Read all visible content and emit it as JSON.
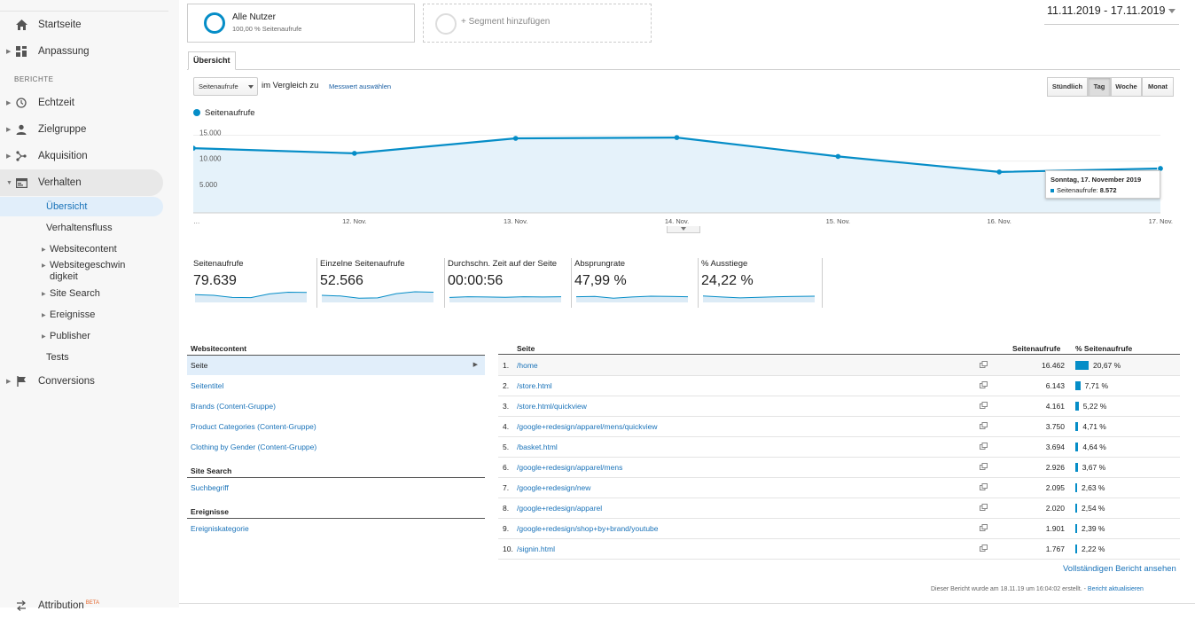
{
  "sidebar": {
    "home": "Startseite",
    "customization": "Anpassung",
    "section": "BERICHTE",
    "realtime": "Echtzeit",
    "audience": "Zielgruppe",
    "acquisition": "Akquisition",
    "behavior": "Verhalten",
    "behavior_sub": {
      "overview": "Übersicht",
      "flow": "Verhaltensfluss",
      "site_content": "Websitecontent",
      "site_speed_1": "Websitegeschwin",
      "site_speed_2": "digkeit",
      "site_search": "Site Search",
      "events": "Ereignisse",
      "publisher": "Publisher",
      "tests": "Tests"
    },
    "conversions": "Conversions",
    "attribution": "Attribution",
    "beta": "BETA"
  },
  "segment": {
    "name": "Alle Nutzer",
    "sub": "100,00 % Seitenaufrufe",
    "add": "+ Segment hinzufügen"
  },
  "date_range": "11.11.2019 - 17.11.2019",
  "tab": "Übersicht",
  "controls": {
    "metric": "Seitenaufrufe",
    "compare": "im Vergleich zu",
    "choose_metric": "Messwert auswählen",
    "granularity": [
      "Stündlich",
      "Tag",
      "Woche",
      "Monat"
    ]
  },
  "chart_data": {
    "type": "area",
    "x": [
      "…",
      "12. Nov.",
      "13. Nov.",
      "14. Nov.",
      "15. Nov.",
      "16. Nov.",
      "17. Nov."
    ],
    "series": [
      {
        "name": "Seitenaufrufe",
        "values": [
          12500,
          11500,
          14400,
          14550,
          10900,
          7900,
          8572
        ]
      }
    ],
    "y_ticks": [
      "15.000",
      "10.000",
      "5.000"
    ],
    "ylim": [
      0,
      18000
    ],
    "color": "#058dc7",
    "fill": "#e5f2fa",
    "tooltip": {
      "date": "Sonntag, 17. November 2019",
      "label": "Seitenaufrufe:",
      "value": "8.572"
    }
  },
  "kpis": [
    {
      "name": "Seitenaufrufe",
      "value": "79.639",
      "spark": [
        0.55,
        0.5,
        0.35,
        0.34,
        0.6,
        0.72,
        0.7
      ]
    },
    {
      "name": "Einzelne Seitenaufrufe",
      "value": "52.566",
      "spark": [
        0.5,
        0.45,
        0.3,
        0.32,
        0.62,
        0.75,
        0.72
      ]
    },
    {
      "name": "Durchschn. Zeit auf der Seite",
      "value": "00:00:56",
      "spark": [
        0.35,
        0.4,
        0.38,
        0.36,
        0.4,
        0.38,
        0.4
      ]
    },
    {
      "name": "Absprungrate",
      "value": "47,99 %",
      "spark": [
        0.4,
        0.42,
        0.3,
        0.38,
        0.44,
        0.42,
        0.4
      ]
    },
    {
      "name": "% Ausstiege",
      "value": "24,22 %",
      "spark": [
        0.45,
        0.38,
        0.32,
        0.36,
        0.4,
        0.42,
        0.44
      ]
    }
  ],
  "left_table": {
    "head1": "Websitecontent",
    "items1": [
      "Seite",
      "Seitentitel",
      "Brands (Content-Gruppe)",
      "Product Categories (Content-Gruppe)",
      "Clothing by Gender (Content-Gruppe)"
    ],
    "head2": "Site Search",
    "items2": [
      "Suchbegriff"
    ],
    "head3": "Ereignisse",
    "items3": [
      "Ereigniskategorie"
    ]
  },
  "right_table": {
    "col_page": "Seite",
    "col_pv": "Seitenaufrufe",
    "col_pct": "% Seitenaufrufe",
    "rows": [
      {
        "num": "1.",
        "page": "/home",
        "pv": "16.462",
        "pct": "20,67 %",
        "share": 20.67
      },
      {
        "num": "2.",
        "page": "/store.html",
        "pv": "6.143",
        "pct": "7,71 %",
        "share": 7.71
      },
      {
        "num": "3.",
        "page": "/store.html/quickview",
        "pv": "4.161",
        "pct": "5,22 %",
        "share": 5.22
      },
      {
        "num": "4.",
        "page": "/google+redesign/apparel/mens/quickview",
        "pv": "3.750",
        "pct": "4,71 %",
        "share": 4.71
      },
      {
        "num": "5.",
        "page": "/basket.html",
        "pv": "3.694",
        "pct": "4,64 %",
        "share": 4.64
      },
      {
        "num": "6.",
        "page": "/google+redesign/apparel/mens",
        "pv": "2.926",
        "pct": "3,67 %",
        "share": 3.67
      },
      {
        "num": "7.",
        "page": "/google+redesign/new",
        "pv": "2.095",
        "pct": "2,63 %",
        "share": 2.63
      },
      {
        "num": "8.",
        "page": "/google+redesign/apparel",
        "pv": "2.020",
        "pct": "2,54 %",
        "share": 2.54
      },
      {
        "num": "9.",
        "page": "/google+redesign/shop+by+brand/youtube",
        "pv": "1.901",
        "pct": "2,39 %",
        "share": 2.39
      },
      {
        "num": "10.",
        "page": "/signin.html",
        "pv": "1.767",
        "pct": "2,22 %",
        "share": 2.22
      }
    ]
  },
  "full_report": "Vollständigen Bericht ansehen",
  "footer": {
    "note": "Dieser Bericht wurde am 18.11.19 um 16:04:02 erstellt. -",
    "refresh": "Bericht aktualisieren"
  }
}
